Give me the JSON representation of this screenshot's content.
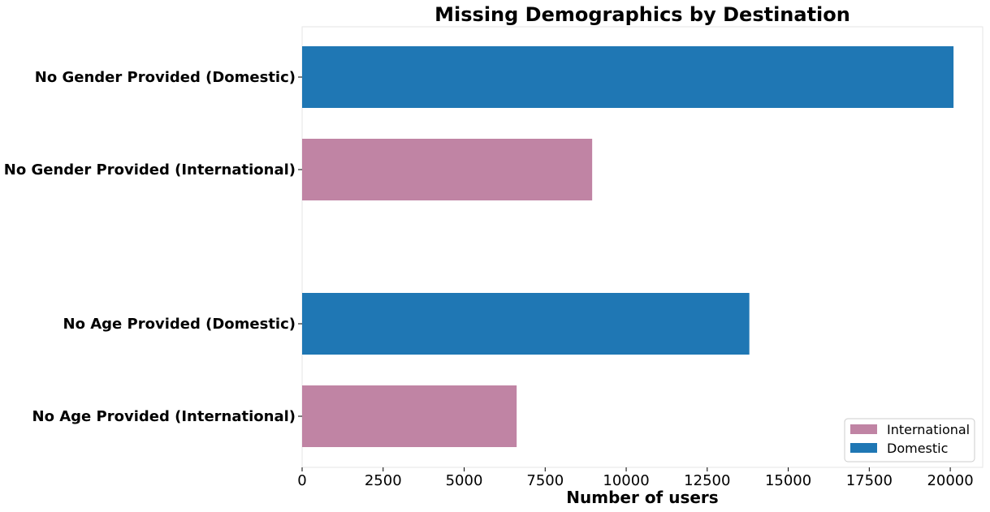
{
  "chart_data": {
    "type": "bar",
    "orientation": "horizontal",
    "title": "Missing Demographics by Destination",
    "xlabel": "Number of users",
    "ylabel": "",
    "xlim": [
      0,
      21000
    ],
    "x_ticks": [
      0,
      2500,
      5000,
      7500,
      10000,
      12500,
      15000,
      17500,
      20000
    ],
    "grid": false,
    "legend_position": "bottom-right",
    "bars": [
      {
        "label": "No Gender Provided (Domestic)",
        "value": 20100,
        "series": "Domestic"
      },
      {
        "label": "No Gender Provided (International)",
        "value": 8950,
        "series": "International"
      },
      {
        "label": "No Age Provided (Domestic)",
        "value": 13800,
        "series": "Domestic"
      },
      {
        "label": "No Age Provided (International)",
        "value": 6620,
        "series": "International"
      }
    ],
    "series": [
      {
        "name": "International",
        "color": "#c084a4"
      },
      {
        "name": "Domestic",
        "color": "#1f77b4"
      }
    ]
  }
}
